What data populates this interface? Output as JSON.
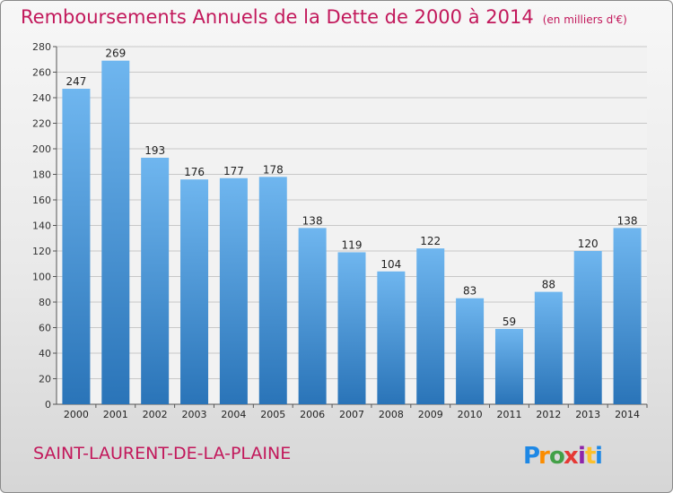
{
  "chart_data": {
    "type": "bar",
    "title": "Remboursements Annuels de la Dette de 2000 à 2014",
    "subtitle": "(en milliers d'€)",
    "categories": [
      "2000",
      "2001",
      "2002",
      "2003",
      "2004",
      "2005",
      "2006",
      "2007",
      "2008",
      "2009",
      "2010",
      "2011",
      "2012",
      "2013",
      "2014"
    ],
    "values": [
      247,
      269,
      193,
      176,
      177,
      178,
      138,
      119,
      104,
      122,
      83,
      59,
      88,
      120,
      138
    ],
    "ylim": [
      0,
      280
    ],
    "yticks": [
      0,
      20,
      40,
      60,
      80,
      100,
      120,
      140,
      160,
      180,
      200,
      220,
      240,
      260,
      280
    ],
    "grid": true,
    "colors": {
      "bar": "#4a9de0",
      "bar_light": "#6fb6ef",
      "bar_dark": "#2a74b8",
      "title": "#c2185b",
      "grid": "#c8c8c8"
    }
  },
  "commune": "SAINT-LAURENT-DE-LA-PLAINE",
  "logo": {
    "text": "Proxiti",
    "letters": [
      {
        "ch": "P",
        "color": "#1e88e5"
      },
      {
        "ch": "r",
        "color": "#fb8c00"
      },
      {
        "ch": "o",
        "color": "#43a047"
      },
      {
        "ch": "x",
        "color": "#e53935"
      },
      {
        "ch": "i",
        "color": "#8e24aa"
      },
      {
        "ch": "t",
        "color": "#fbc02d"
      },
      {
        "ch": "i",
        "color": "#1e88e5"
      }
    ]
  }
}
